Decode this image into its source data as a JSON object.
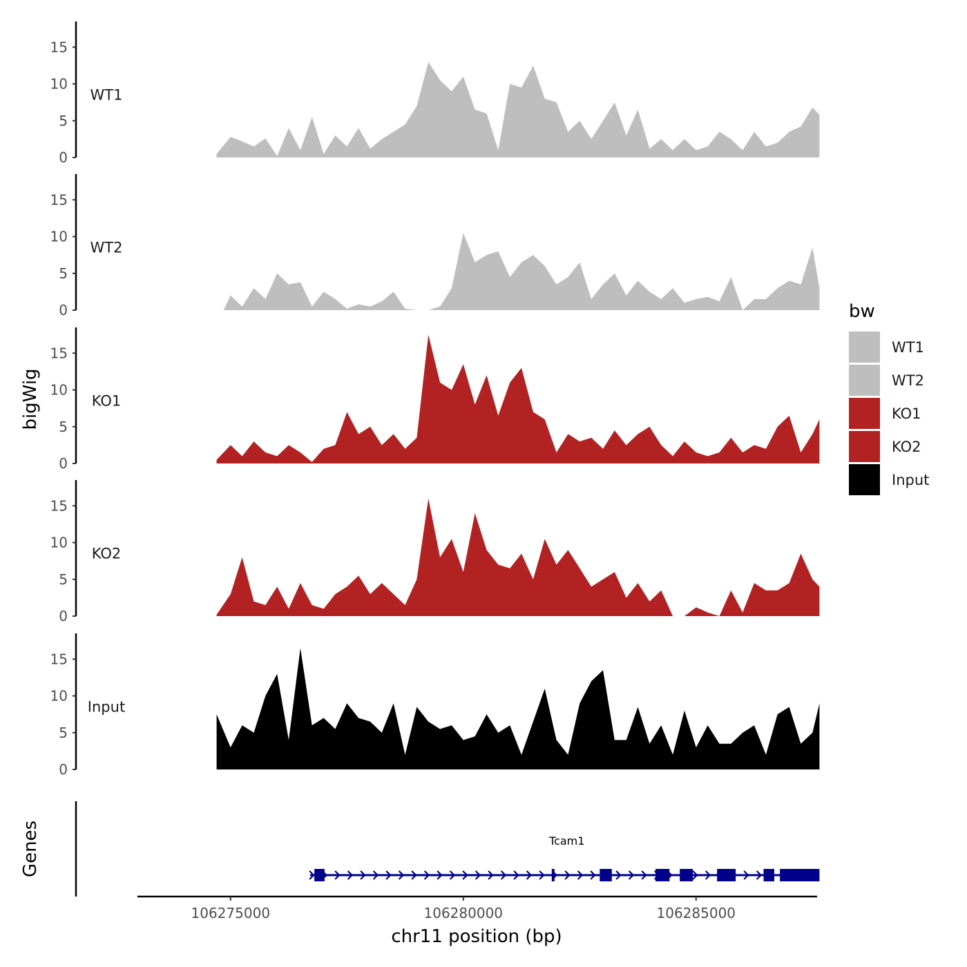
{
  "chart_data": {
    "type": "area",
    "chromosome": "chr11",
    "xlabel": "chr11 position (bp)",
    "ylabel": "bigWig",
    "genes_label": "Genes",
    "x_range": [
      106273000,
      106287600
    ],
    "y_range": [
      0,
      18.5
    ],
    "x_ticks": [
      {
        "value": 106275000,
        "label": "106275000"
      },
      {
        "value": 106280000,
        "label": "106280000"
      },
      {
        "value": 106285000,
        "label": "106285000"
      }
    ],
    "y_ticks": [
      {
        "value": 0,
        "label": "0"
      },
      {
        "value": 5,
        "label": "5"
      },
      {
        "value": 10,
        "label": "10"
      },
      {
        "value": 15,
        "label": "15"
      }
    ],
    "legend": {
      "title": "bw",
      "entries": [
        {
          "label": "WT1",
          "color": "#bebebe"
        },
        {
          "label": "WT2",
          "color": "#bebebe"
        },
        {
          "label": "KO1",
          "color": "#b22222"
        },
        {
          "label": "KO2",
          "color": "#b22222"
        },
        {
          "label": "Input",
          "color": "#000000"
        }
      ]
    },
    "series": [
      {
        "name": "WT1",
        "color": "#bebebe",
        "x": [
          106274700,
          106275000,
          106275250,
          106275500,
          106275750,
          106276000,
          106276250,
          106276500,
          106276750,
          106277000,
          106277250,
          106277500,
          106277750,
          106278000,
          106278250,
          106278500,
          106278750,
          106279000,
          106279250,
          106279500,
          106279750,
          106280000,
          106280250,
          106280500,
          106280750,
          106281000,
          106281250,
          106281500,
          106281750,
          106282000,
          106282250,
          106282500,
          106282750,
          106283000,
          106283250,
          106283500,
          106283750,
          106284000,
          106284250,
          106284500,
          106284750,
          106285000,
          106285250,
          106285500,
          106285750,
          106286000,
          106286250,
          106286500,
          106286750,
          106287000,
          106287250,
          106287500,
          106287650
        ],
        "values": [
          0.5,
          2.8,
          2.2,
          1.5,
          2.6,
          0.2,
          4,
          1,
          5.5,
          0.5,
          3,
          1.5,
          4,
          1.2,
          2.5,
          3.5,
          4.5,
          7,
          13,
          10.5,
          9,
          11,
          6.5,
          6,
          1,
          10,
          9.5,
          12.5,
          8,
          7.5,
          3.5,
          5,
          2.5,
          5,
          7.5,
          3,
          6.5,
          1.2,
          2.5,
          1,
          2.5,
          1,
          1.5,
          3.5,
          2.5,
          1,
          3.5,
          1.5,
          2,
          3.5,
          4.2,
          6.8,
          5.8
        ]
      },
      {
        "name": "WT2",
        "color": "#bebebe",
        "x": [
          106274850,
          106275000,
          106275250,
          106275500,
          106275750,
          106276000,
          106276250,
          106276500,
          106276750,
          106277000,
          106277250,
          106277500,
          106277750,
          106278000,
          106278250,
          106278500,
          106278750,
          106279000,
          106279250,
          106279500,
          106279750,
          106280000,
          106280250,
          106280500,
          106280750,
          106281000,
          106281250,
          106281500,
          106281750,
          106282000,
          106282250,
          106282500,
          106282750,
          106283000,
          106283250,
          106283500,
          106283750,
          106284000,
          106284250,
          106284500,
          106284750,
          106285000,
          106285250,
          106285500,
          106285750,
          106286000,
          106286250,
          106286500,
          106286750,
          106287000,
          106287250,
          106287500,
          106287650
        ],
        "values": [
          0,
          2,
          0.5,
          3,
          1.5,
          5,
          3.5,
          3.8,
          0.5,
          2.5,
          1.5,
          0.2,
          0.8,
          0.5,
          1.2,
          2.5,
          0.2,
          0,
          0,
          0.5,
          3,
          10.5,
          6.5,
          7.5,
          8,
          4.5,
          6.5,
          7.5,
          6,
          3.5,
          4.5,
          6.5,
          1.5,
          3.5,
          5,
          2,
          4,
          2.5,
          1.5,
          3,
          1,
          1.5,
          1.8,
          1.2,
          4.5,
          0,
          1.5,
          1.5,
          3,
          4,
          3.5,
          8.5,
          3
        ]
      },
      {
        "name": "KO1",
        "color": "#b22222",
        "x": [
          106274700,
          106275000,
          106275250,
          106275500,
          106275750,
          106276000,
          106276250,
          106276500,
          106276750,
          106277000,
          106277250,
          106277500,
          106277750,
          106278000,
          106278250,
          106278500,
          106278750,
          106279000,
          106279250,
          106279500,
          106279750,
          106280000,
          106280250,
          106280500,
          106280750,
          106281000,
          106281250,
          106281500,
          106281750,
          106282000,
          106282250,
          106282500,
          106282750,
          106283000,
          106283250,
          106283500,
          106283750,
          106284000,
          106284250,
          106284500,
          106284750,
          106285000,
          106285250,
          106285500,
          106285750,
          106286000,
          106286250,
          106286500,
          106286750,
          106287000,
          106287250,
          106287500,
          106287650
        ],
        "values": [
          0.5,
          2.5,
          1,
          3,
          1.5,
          1,
          2.5,
          1.5,
          0.2,
          2,
          2.5,
          7,
          4,
          5,
          2.5,
          4,
          2,
          3.5,
          17.5,
          11,
          10,
          13.5,
          8,
          12,
          6.5,
          11,
          13,
          7,
          6,
          1.5,
          4,
          3,
          3.5,
          2,
          4.5,
          2.5,
          4,
          5,
          2.5,
          1,
          3,
          1.5,
          1,
          1.5,
          3.5,
          1.5,
          2.5,
          2,
          5,
          6.5,
          1.5,
          4,
          6
        ]
      },
      {
        "name": "KO2",
        "color": "#b22222",
        "x": [
          106274700,
          106275000,
          106275250,
          106275500,
          106275750,
          106276000,
          106276250,
          106276500,
          106276750,
          106277000,
          106277250,
          106277500,
          106277750,
          106278000,
          106278250,
          106278500,
          106278750,
          106279000,
          106279250,
          106279500,
          106279750,
          106280000,
          106280250,
          106280500,
          106280750,
          106281000,
          106281250,
          106281500,
          106281750,
          106282000,
          106282250,
          106282500,
          106282750,
          106283000,
          106283250,
          106283500,
          106283750,
          106284000,
          106284250,
          106284500,
          106284750,
          106285000,
          106285250,
          106285500,
          106285750,
          106286000,
          106286250,
          106286500,
          106286750,
          106287000,
          106287250,
          106287500,
          106287650
        ],
        "values": [
          0.2,
          3,
          8,
          2,
          1.5,
          4,
          1,
          4.5,
          1.5,
          1,
          3,
          4,
          5.5,
          3,
          4.5,
          3,
          1.5,
          5,
          16,
          8,
          10.5,
          6,
          14,
          9,
          7,
          6.5,
          8.5,
          5,
          10.5,
          7,
          9,
          6.5,
          4,
          5,
          6,
          2.5,
          4.5,
          2,
          3.5,
          0,
          0,
          1.2,
          0.5,
          0,
          3.5,
          0.5,
          4.5,
          3.5,
          3.5,
          4.5,
          8.5,
          5,
          4
        ]
      },
      {
        "name": "Input",
        "color": "#000000",
        "x": [
          106274700,
          106275000,
          106275250,
          106275500,
          106275750,
          106276000,
          106276250,
          106276500,
          106276750,
          106277000,
          106277250,
          106277500,
          106277750,
          106278000,
          106278250,
          106278500,
          106278750,
          106279000,
          106279250,
          106279500,
          106279750,
          106280000,
          106280250,
          106280500,
          106280750,
          106281000,
          106281250,
          106281500,
          106281750,
          106282000,
          106282250,
          106282500,
          106282750,
          106283000,
          106283250,
          106283500,
          106283750,
          106284000,
          106284250,
          106284500,
          106284750,
          106285000,
          106285250,
          106285500,
          106285750,
          106286000,
          106286250,
          106286500,
          106286750,
          106287000,
          106287250,
          106287500,
          106287650
        ],
        "values": [
          7.5,
          3,
          6,
          5,
          10,
          13,
          4,
          16.5,
          6,
          7,
          5.5,
          9,
          7,
          6.5,
          5,
          9,
          2,
          8.5,
          6.5,
          5.5,
          6,
          4,
          4.5,
          7.5,
          5,
          6,
          2,
          6.5,
          11,
          4,
          2,
          9,
          12,
          13.5,
          4,
          4,
          8.5,
          3.5,
          6,
          2,
          8,
          3,
          6,
          3.5,
          3.5,
          5,
          6,
          2,
          7.5,
          8.5,
          3.5,
          5,
          9
        ]
      }
    ],
    "genes": [
      {
        "name": "Tcam1",
        "strand": "+",
        "start": 106276800,
        "end": 106287650,
        "exons": [
          [
            106276800,
            106277020
          ],
          [
            106281900,
            106281960
          ],
          [
            106282930,
            106283190
          ],
          [
            106284130,
            106284430
          ],
          [
            106284650,
            106284930
          ],
          [
            106285450,
            106285850
          ],
          [
            106286450,
            106286680
          ],
          [
            106286800,
            106287650
          ]
        ]
      }
    ]
  }
}
